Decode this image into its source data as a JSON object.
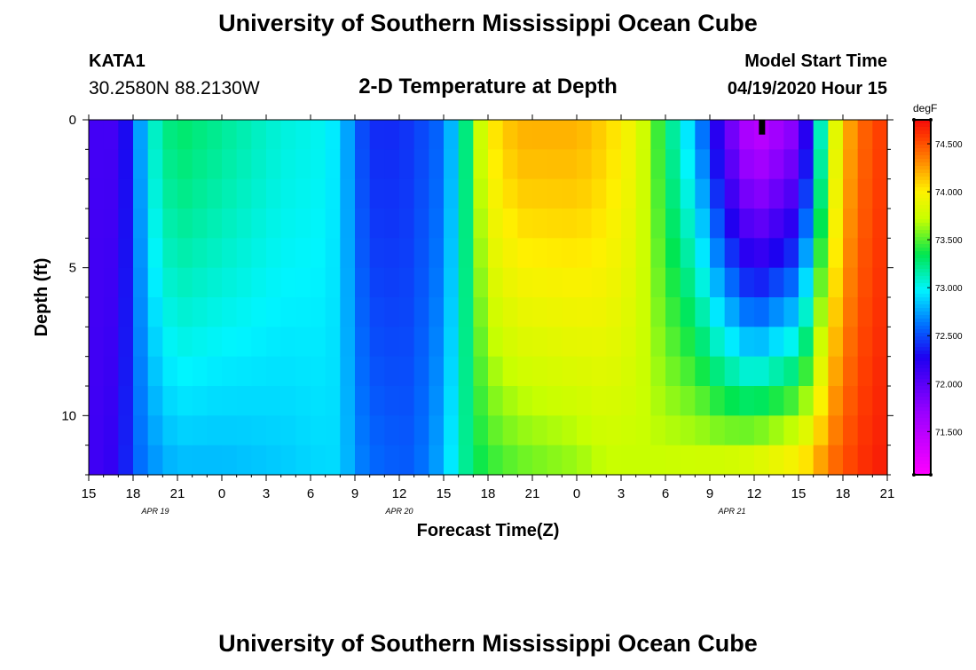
{
  "header": {
    "title": "University of Southern Mississippi Ocean Cube",
    "station": "KATA1",
    "coords": "30.2580N 88.2130W",
    "subtitle": "2-D Temperature at Depth",
    "model_label": "Model Start Time",
    "model_time": "04/19/2020 Hour 15"
  },
  "footer": {
    "title": "University of Southern Mississippi Ocean Cube"
  },
  "chart_data": {
    "type": "heatmap",
    "title": "2-D Temperature at Depth",
    "xlabel": "Forecast Time(Z)",
    "ylabel": "Depth (ft)",
    "x_unit": "hours since 04/19 15Z",
    "x_range": [
      0,
      54
    ],
    "x_ticks": [
      {
        "h": 0,
        "label": "15"
      },
      {
        "h": 3,
        "label": "18"
      },
      {
        "h": 6,
        "label": "21"
      },
      {
        "h": 9,
        "label": "0"
      },
      {
        "h": 12,
        "label": "3"
      },
      {
        "h": 15,
        "label": "6"
      },
      {
        "h": 18,
        "label": "9"
      },
      {
        "h": 21,
        "label": "12"
      },
      {
        "h": 24,
        "label": "15"
      },
      {
        "h": 27,
        "label": "18"
      },
      {
        "h": 30,
        "label": "21"
      },
      {
        "h": 33,
        "label": "0"
      },
      {
        "h": 36,
        "label": "3"
      },
      {
        "h": 39,
        "label": "6"
      },
      {
        "h": 42,
        "label": "9"
      },
      {
        "h": 45,
        "label": "12"
      },
      {
        "h": 48,
        "label": "15"
      },
      {
        "h": 51,
        "label": "18"
      },
      {
        "h": 54,
        "label": "21"
      }
    ],
    "date_labels": [
      {
        "h": 4.5,
        "label": "APR  19"
      },
      {
        "h": 21,
        "label": "APR  20"
      },
      {
        "h": 43.5,
        "label": "APR  21"
      }
    ],
    "y_range": [
      0,
      12
    ],
    "y_ticks": [
      {
        "v": 0,
        "label": "0"
      },
      {
        "v": 5,
        "label": "5"
      },
      {
        "v": 10,
        "label": "10"
      }
    ],
    "colorbar": {
      "unit": "degF",
      "min": 71.05,
      "max": 74.75,
      "ticks": [
        "74.500",
        "74.000",
        "73.500",
        "73.000",
        "72.500",
        "72.000",
        "71.500"
      ],
      "tick_values": [
        74.5,
        74.0,
        73.5,
        73.0,
        72.5,
        72.0,
        71.5
      ]
    },
    "n_time": 54,
    "depths": [
      0.5,
      1.5,
      2.5,
      3.5,
      4.5,
      5.5,
      6.5,
      7.5,
      8.5,
      9.5,
      10.5,
      11.5
    ],
    "profiles": [
      {
        "h": 0,
        "surf": 72.1,
        "bot": 72.1
      },
      {
        "h": 2,
        "surf": 72.1,
        "bot": 72.2
      },
      {
        "h": 3,
        "surf": 72.5,
        "bot": 72.55
      },
      {
        "h": 4,
        "surf": 73.0,
        "bot": 72.65
      },
      {
        "h": 5,
        "surf": 73.2,
        "bot": 72.75
      },
      {
        "h": 6,
        "surf": 73.3,
        "bot": 72.8
      },
      {
        "h": 9,
        "surf": 73.2,
        "bot": 72.8
      },
      {
        "h": 13,
        "surf": 73.05,
        "bot": 72.85
      },
      {
        "h": 16,
        "surf": 73.0,
        "bot": 72.9
      },
      {
        "h": 17,
        "surf": 72.9,
        "bot": 72.9
      },
      {
        "h": 18,
        "surf": 72.6,
        "bot": 72.7
      },
      {
        "h": 19,
        "surf": 72.4,
        "bot": 72.6
      },
      {
        "h": 21,
        "surf": 72.4,
        "bot": 72.55
      },
      {
        "h": 22,
        "surf": 72.45,
        "bot": 72.55
      },
      {
        "h": 24,
        "surf": 72.6,
        "bot": 72.8
      },
      {
        "h": 25,
        "surf": 73.0,
        "bot": 73.1
      },
      {
        "h": 26,
        "surf": 73.5,
        "bot": 73.3
      },
      {
        "h": 27,
        "surf": 74.0,
        "bot": 73.4
      },
      {
        "h": 29,
        "surf": 74.2,
        "bot": 73.5
      },
      {
        "h": 33,
        "surf": 74.2,
        "bot": 73.6
      },
      {
        "h": 35,
        "surf": 74.1,
        "bot": 73.7
      },
      {
        "h": 37,
        "surf": 73.9,
        "bot": 73.7
      },
      {
        "h": 39,
        "surf": 73.3,
        "bot": 73.75
      },
      {
        "h": 41,
        "surf": 72.8,
        "bot": 73.8
      },
      {
        "h": 43,
        "surf": 72.0,
        "bot": 73.85
      },
      {
        "h": 45,
        "surf": 71.4,
        "bot": 73.95
      },
      {
        "h": 48,
        "surf": 71.8,
        "bot": 74.1
      },
      {
        "h": 49,
        "surf": 72.6,
        "bot": 74.2
      },
      {
        "h": 50,
        "surf": 73.6,
        "bot": 74.4
      },
      {
        "h": 51,
        "surf": 74.1,
        "bot": 74.5
      },
      {
        "h": 52,
        "surf": 74.4,
        "bot": 74.6
      },
      {
        "h": 54,
        "surf": 74.6,
        "bot": 74.7
      }
    ],
    "marker": {
      "h": 45.5,
      "depth_from": 0,
      "depth_to": 0.5
    }
  }
}
